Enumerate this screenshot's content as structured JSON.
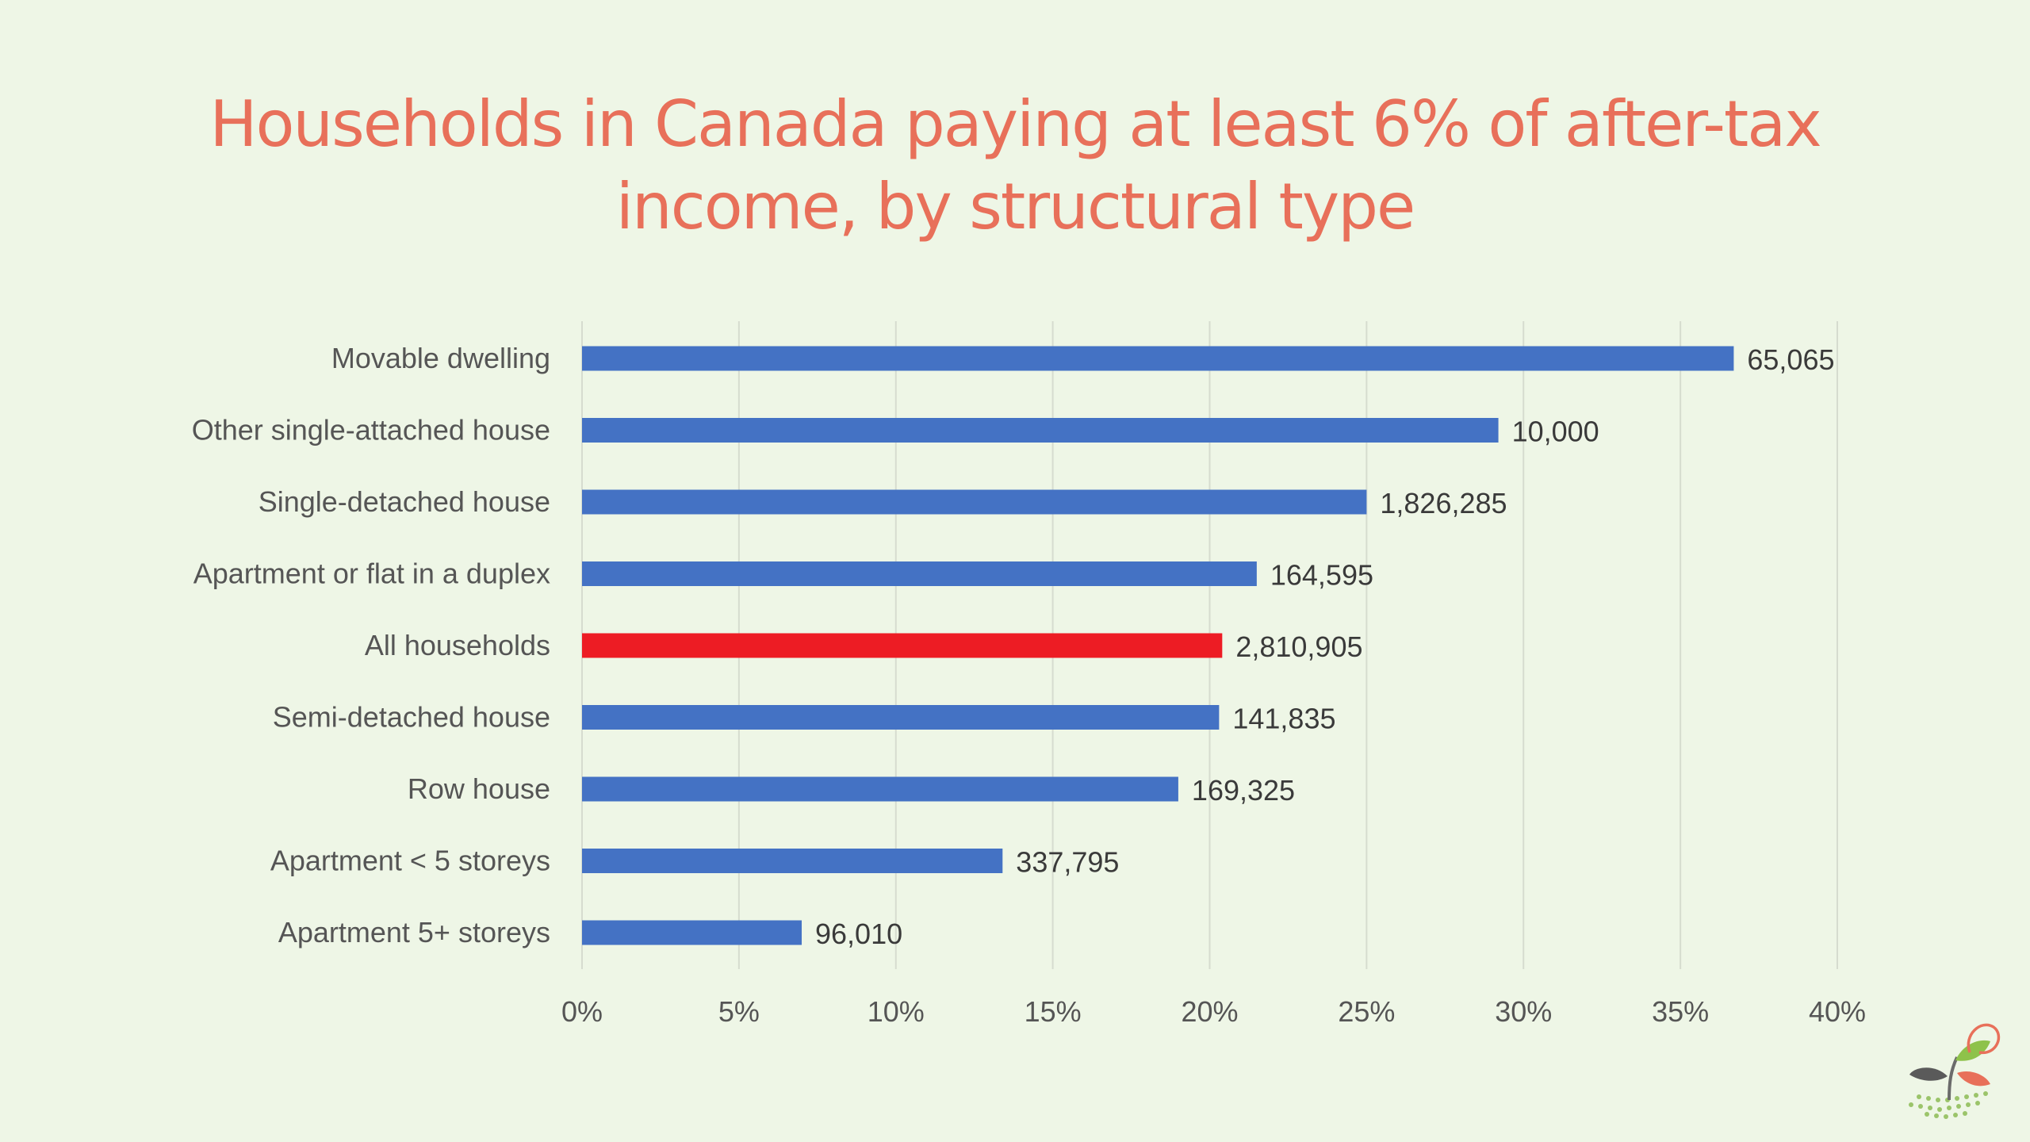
{
  "slide": {
    "title_line1": "Households in Canada paying at least 6% of after-tax",
    "title_line2": "income, by structural type"
  },
  "colors": {
    "background": "#eef6e6",
    "title": "#e8705a",
    "bar_default": "#4472c4",
    "bar_highlight": "#ed1c24",
    "gridline": "#d6dccf"
  },
  "logo": {
    "icon": "sprout-leaves-logo-icon"
  },
  "chart_data": {
    "type": "bar",
    "orientation": "horizontal",
    "title": "Households in Canada paying at least 6% of after-tax income, by structural type",
    "xlabel": "",
    "ylabel": "",
    "xlim": [
      0,
      40
    ],
    "x_ticks": [
      "0%",
      "5%",
      "10%",
      "15%",
      "20%",
      "25%",
      "30%",
      "35%",
      "40%"
    ],
    "grid": "vertical",
    "legend": "none",
    "categories": [
      "Movable dwelling",
      "Other single-attached house",
      "Single-detached house",
      "Apartment or flat in a duplex",
      "All households",
      "Semi-detached house",
      "Row house",
      "Apartment < 5 storeys",
      "Apartment 5+ storeys"
    ],
    "values": [
      36.7,
      29.2,
      25.0,
      21.5,
      20.4,
      20.3,
      19.0,
      13.4,
      7.0
    ],
    "data_labels": [
      "65,065",
      "10,000",
      "1,826,285",
      "164,595",
      "2,810,905",
      "141,835",
      "169,325",
      "337,795",
      "96,010"
    ],
    "highlight_index": 4
  }
}
